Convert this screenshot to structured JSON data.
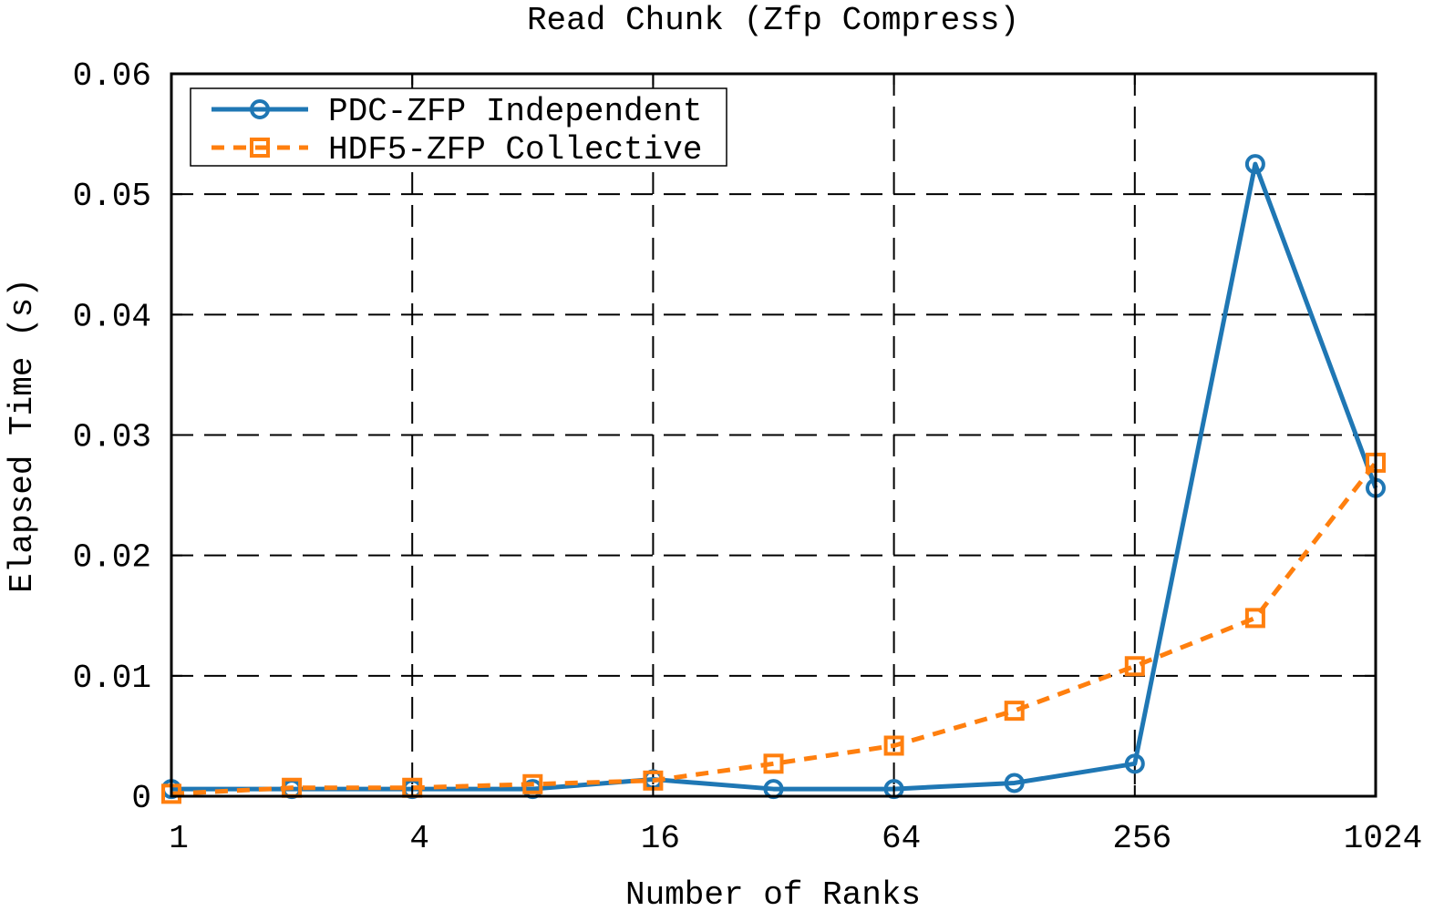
{
  "chart_data": {
    "type": "line",
    "title": "Read Chunk (Zfp Compress)",
    "xlabel": "Number of Ranks",
    "ylabel": "Elapsed Time (s)",
    "x_scale": "log2",
    "xlim": [
      1,
      1024
    ],
    "ylim": [
      0,
      0.06
    ],
    "x_ticks": [
      1,
      4,
      16,
      64,
      256,
      1024
    ],
    "x_tick_labels": [
      "1",
      "4",
      "16",
      "64",
      "256",
      "1024"
    ],
    "y_ticks": [
      0,
      0.01,
      0.02,
      0.03,
      0.04,
      0.05,
      0.06
    ],
    "y_tick_labels": [
      "0",
      "0.01",
      "0.02",
      "0.03",
      "0.04",
      "0.05",
      "0.06"
    ],
    "grid": true,
    "legend_position": "top-left",
    "x": [
      1,
      2,
      4,
      8,
      16,
      32,
      64,
      128,
      256,
      512,
      1024
    ],
    "series": [
      {
        "name": "PDC-ZFP Independent",
        "color": "#1f77b4",
        "line_style": "solid",
        "marker": "circle",
        "values": [
          0.0006,
          0.0006,
          0.0006,
          0.0006,
          0.0014,
          0.0006,
          0.0006,
          0.0011,
          0.0027,
          0.0525,
          0.0256
        ]
      },
      {
        "name": "HDF5-ZFP Collective",
        "color": "#ff7f0e",
        "line_style": "dashed",
        "marker": "square",
        "values": [
          0.0002,
          0.0007,
          0.0007,
          0.001,
          0.0013,
          0.0027,
          0.0042,
          0.0071,
          0.0108,
          0.0148,
          0.0277
        ]
      }
    ]
  }
}
